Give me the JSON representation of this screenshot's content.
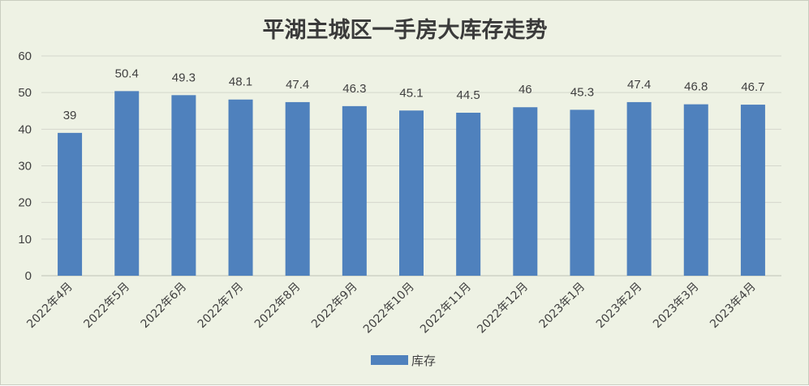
{
  "chart_data": {
    "type": "bar",
    "title": "平湖主城区一手房大库存走势",
    "categories": [
      "2022年4月",
      "2022年5月",
      "2022年6月",
      "2022年7月",
      "2022年8月",
      "2022年9月",
      "2022年10月",
      "2022年11月",
      "2022年12月",
      "2023年1月",
      "2023年2月",
      "2023年3月",
      "2023年4月"
    ],
    "series": [
      {
        "name": "库存",
        "values": [
          39,
          50.4,
          49.3,
          48.1,
          47.4,
          46.3,
          45.1,
          44.5,
          46,
          45.3,
          47.4,
          46.8,
          46.7
        ]
      }
    ],
    "data_labels": [
      "39",
      "50.4",
      "49.3",
      "48.1",
      "47.4",
      "46.3",
      "45.1",
      "44.5",
      "46",
      "45.3",
      "47.4",
      "46.8",
      "46.7"
    ],
    "y_ticks": [
      "0",
      "10",
      "20",
      "30",
      "40",
      "50",
      "60"
    ],
    "ylim": [
      0,
      60
    ],
    "xlabel": "",
    "ylabel": "",
    "grid": true,
    "legend_position": "bottom",
    "colors": {
      "bar": "#4f81bd",
      "background": "#eef2e4",
      "grid": "#d4d7cc"
    }
  }
}
